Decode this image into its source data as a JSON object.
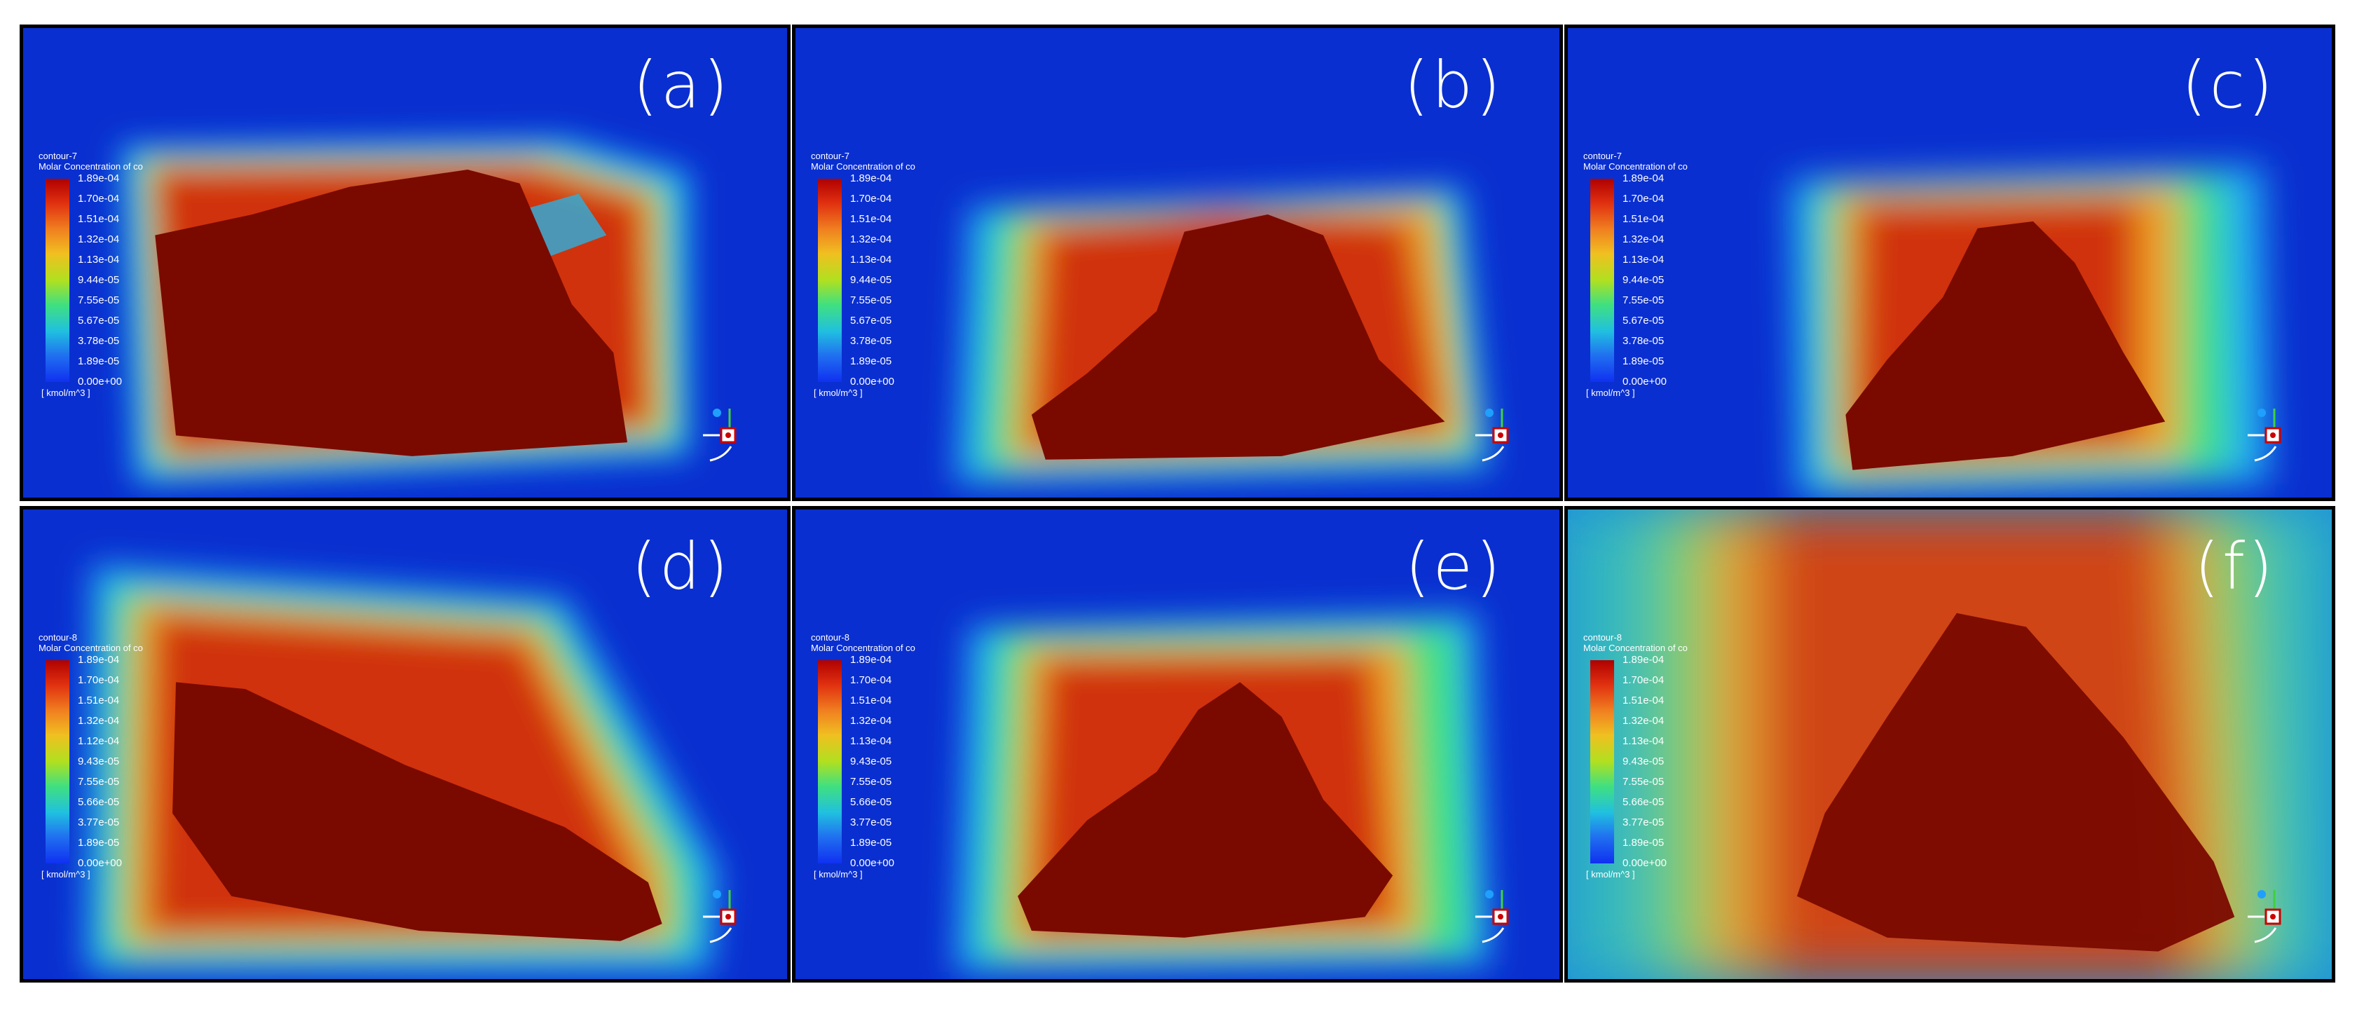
{
  "panels": [
    {
      "label": "(a)",
      "contour": "contour-7",
      "quantity": "Molar Concentration of co",
      "ticks": [
        "1.89e-04",
        "1.70e-04",
        "1.51e-04",
        "1.32e-04",
        "1.13e-04",
        "9.44e-05",
        "7.55e-05",
        "5.67e-05",
        "3.78e-05",
        "1.89e-05",
        "0.00e+00"
      ],
      "unit": "[ kmol/m^3 ]"
    },
    {
      "label": "(b)",
      "contour": "contour-7",
      "quantity": "Molar Concentration of co",
      "ticks": [
        "1.89e-04",
        "1.70e-04",
        "1.51e-04",
        "1.32e-04",
        "1.13e-04",
        "9.44e-05",
        "7.55e-05",
        "5.67e-05",
        "3.78e-05",
        "1.89e-05",
        "0.00e+00"
      ],
      "unit": "[ kmol/m^3 ]"
    },
    {
      "label": "(c)",
      "contour": "contour-7",
      "quantity": "Molar Concentration of co",
      "ticks": [
        "1.89e-04",
        "1.70e-04",
        "1.51e-04",
        "1.32e-04",
        "1.13e-04",
        "9.44e-05",
        "7.55e-05",
        "5.67e-05",
        "3.78e-05",
        "1.89e-05",
        "0.00e+00"
      ],
      "unit": "[ kmol/m^3 ]"
    },
    {
      "label": "(d)",
      "contour": "contour-8",
      "quantity": "Molar Concentration of co",
      "ticks": [
        "1.89e-04",
        "1.70e-04",
        "1.51e-04",
        "1.32e-04",
        "1.12e-04",
        "9.43e-05",
        "7.55e-05",
        "5.66e-05",
        "3.77e-05",
        "1.89e-05",
        "0.00e+00"
      ],
      "unit": "[ kmol/m^3 ]"
    },
    {
      "label": "(e)",
      "contour": "contour-8",
      "quantity": "Molar Concentration of co",
      "ticks": [
        "1.89e-04",
        "1.70e-04",
        "1.51e-04",
        "1.32e-04",
        "1.13e-04",
        "9.43e-05",
        "7.55e-05",
        "5.66e-05",
        "3.77e-05",
        "1.89e-05",
        "0.00e+00"
      ],
      "unit": "[ kmol/m^3 ]"
    },
    {
      "label": "(f)",
      "contour": "contour-8",
      "quantity": "Molar Concentration of co",
      "ticks": [
        "1.89e-04",
        "1.70e-04",
        "1.51e-04",
        "1.32e-04",
        "1.13e-04",
        "9.43e-05",
        "7.55e-05",
        "5.66e-05",
        "3.77e-05",
        "1.89e-05",
        "0.00e+00"
      ],
      "unit": "[ kmol/m^3 ]"
    }
  ],
  "colors": {
    "background": "#0a2fd0",
    "core": "#7a0a00",
    "hot": "#d03010",
    "warm": "#f0a020",
    "mid": "#40e080",
    "cool": "#20b0f0"
  }
}
